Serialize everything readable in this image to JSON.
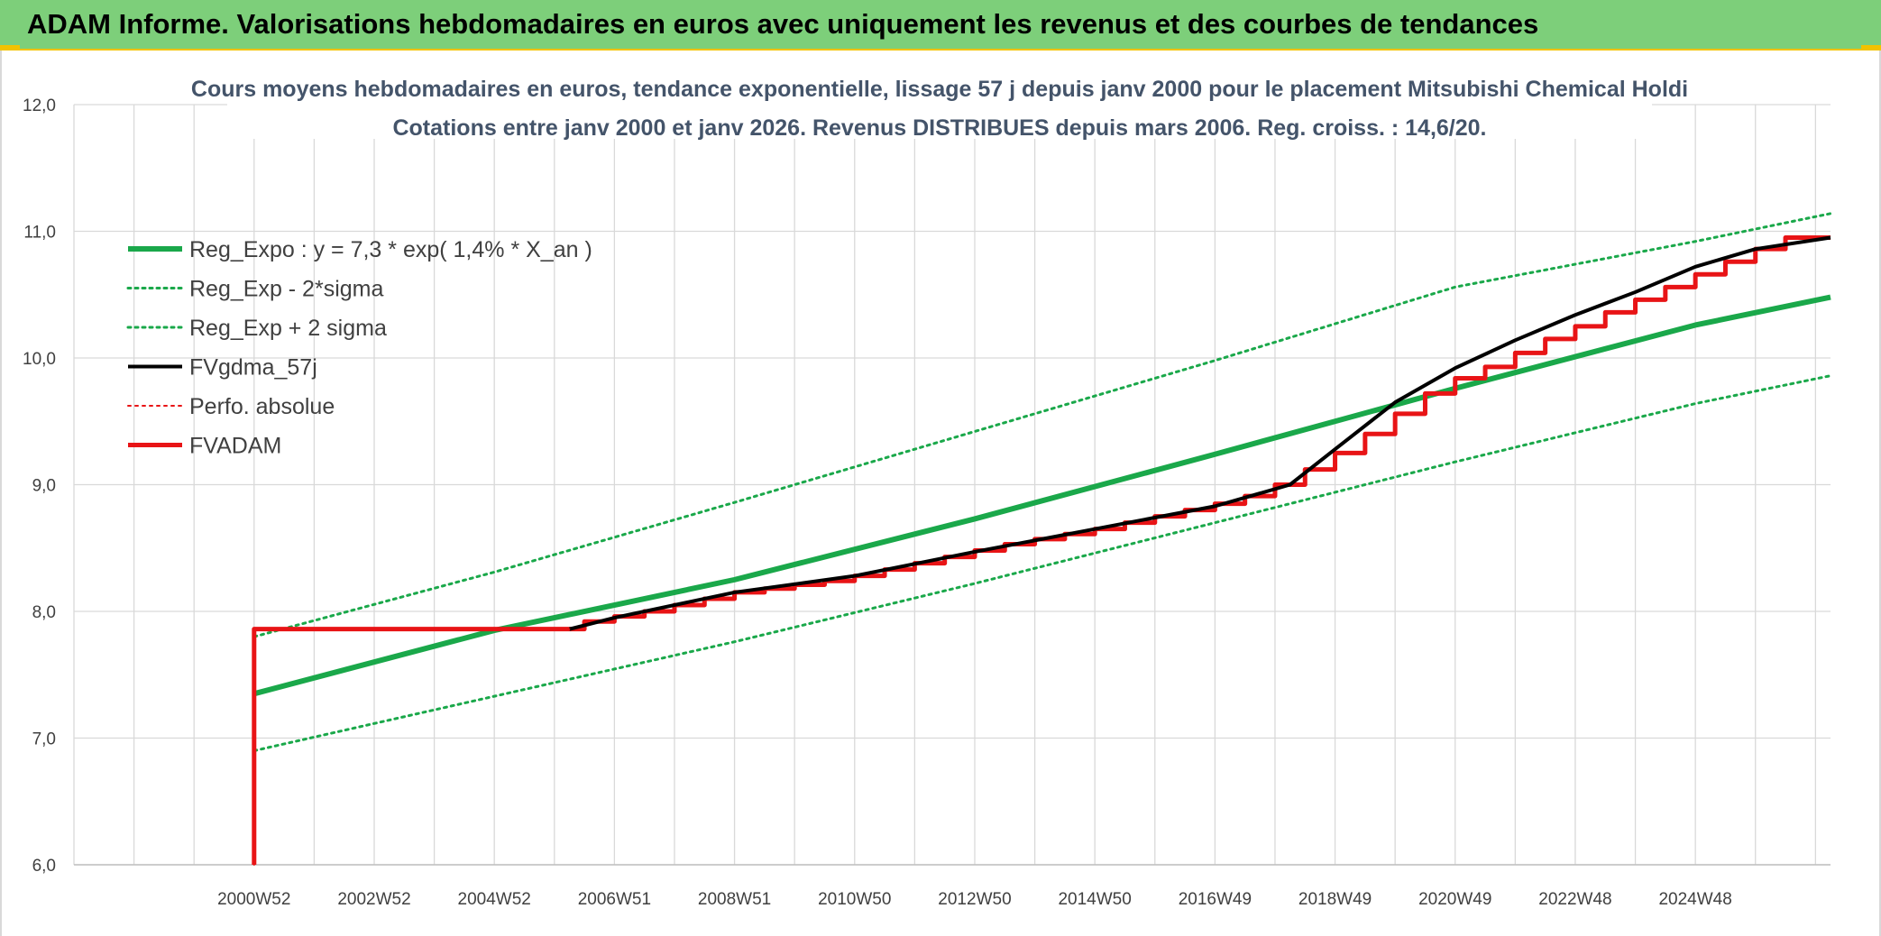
{
  "banner": {
    "title": "ADAM Informe. Valorisations hebdomadaires en euros avec uniquement les revenus et des courbes de tendances"
  },
  "colors": {
    "banner_bg": "#7dcf7a",
    "accent": "#f2c200",
    "green": "#1aa84a",
    "red": "#e81416",
    "black": "#000000",
    "title": "#44546a",
    "grid": "#d9d9d9"
  },
  "chart_data": {
    "type": "line",
    "title": "Cours moyens hebdomadaires en euros, tendance exponentielle, lissage 57 j depuis janv 2000 pour le placement Mitsubishi Chemical Holdi",
    "subtitle": "Cotations entre janv 2000 et janv 2026. Revenus DISTRIBUES depuis mars 2006. Reg. croiss. : 14,6/20.",
    "xlabel": "",
    "ylabel": "",
    "ylim": [
      6.0,
      12.0
    ],
    "xlim": [
      1997.0,
      2026.25
    ],
    "y_ticks": [
      "6,0",
      "7,0",
      "8,0",
      "9,0",
      "10,0",
      "11,0",
      "12,0"
    ],
    "x_ticks": [
      {
        "label": "2000W52",
        "x": 2000.0
      },
      {
        "label": "2002W52",
        "x": 2002.0
      },
      {
        "label": "2004W52",
        "x": 2004.0
      },
      {
        "label": "2006W51",
        "x": 2006.0
      },
      {
        "label": "2008W51",
        "x": 2008.0
      },
      {
        "label": "2010W50",
        "x": 2010.0
      },
      {
        "label": "2012W50",
        "x": 2012.0
      },
      {
        "label": "2014W50",
        "x": 2014.0
      },
      {
        "label": "2016W49",
        "x": 2016.0
      },
      {
        "label": "2018W49",
        "x": 2018.0
      },
      {
        "label": "2020W49",
        "x": 2020.0
      },
      {
        "label": "2022W48",
        "x": 2022.0
      },
      {
        "label": "2024W48",
        "x": 2024.0
      }
    ],
    "legend_position": "top-left",
    "legend": [
      {
        "label": "Reg_Expo : y = 7,3 * exp( 1,4% *  X_an )",
        "color": "#1aa84a",
        "style": "solid",
        "width": 6
      },
      {
        "label": "Reg_Exp - 2*sigma",
        "color": "#1aa84a",
        "style": "dotted",
        "width": 3
      },
      {
        "label": "Reg_Exp + 2 sigma",
        "color": "#1aa84a",
        "style": "dotted",
        "width": 3
      },
      {
        "label": "FVgdma_57j",
        "color": "#000000",
        "style": "solid",
        "width": 4
      },
      {
        "label": "Perfo. absolue",
        "color": "#e81416",
        "style": "dotted",
        "width": 2
      },
      {
        "label": "FVADAM",
        "color": "#e81416",
        "style": "solid",
        "width": 5
      }
    ],
    "series": [
      {
        "name": "Reg_Expo : y = 7,3 * exp( 1,4% *  X_an )",
        "style": "solid",
        "color": "#1aa84a",
        "points": [
          [
            2000.0,
            7.35
          ],
          [
            2004.0,
            7.85
          ],
          [
            2008.0,
            8.25
          ],
          [
            2012.0,
            8.73
          ],
          [
            2016.0,
            9.24
          ],
          [
            2020.0,
            9.76
          ],
          [
            2024.0,
            10.26
          ],
          [
            2026.25,
            10.48
          ]
        ]
      },
      {
        "name": "Reg_Exp - 2*sigma",
        "style": "dotted",
        "color": "#1aa84a",
        "points": [
          [
            2000.0,
            6.9
          ],
          [
            2004.0,
            7.33
          ],
          [
            2008.0,
            7.76
          ],
          [
            2012.0,
            8.22
          ],
          [
            2016.0,
            8.7
          ],
          [
            2020.0,
            9.18
          ],
          [
            2024.0,
            9.64
          ],
          [
            2026.25,
            9.86
          ]
        ]
      },
      {
        "name": "Reg_Exp + 2 sigma",
        "style": "dotted",
        "color": "#1aa84a",
        "points": [
          [
            2000.0,
            7.8
          ],
          [
            2004.0,
            8.31
          ],
          [
            2008.0,
            8.86
          ],
          [
            2012.0,
            9.42
          ],
          [
            2016.0,
            9.98
          ],
          [
            2020.0,
            10.56
          ],
          [
            2024.0,
            10.92
          ],
          [
            2026.25,
            11.14
          ]
        ]
      },
      {
        "name": "FVgdma_57j",
        "style": "solid",
        "color": "#000000",
        "points": [
          [
            2005.25,
            7.86
          ],
          [
            2006.0,
            7.95
          ],
          [
            2008.0,
            8.15
          ],
          [
            2010.0,
            8.28
          ],
          [
            2012.0,
            8.47
          ],
          [
            2014.0,
            8.65
          ],
          [
            2016.0,
            8.83
          ],
          [
            2017.25,
            9.0
          ],
          [
            2018.0,
            9.28
          ],
          [
            2019.0,
            9.65
          ],
          [
            2020.0,
            9.92
          ],
          [
            2021.0,
            10.14
          ],
          [
            2022.0,
            10.34
          ],
          [
            2023.0,
            10.52
          ],
          [
            2024.0,
            10.72
          ],
          [
            2025.0,
            10.86
          ],
          [
            2026.25,
            10.95
          ]
        ]
      },
      {
        "name": "Perfo. absolue",
        "style": "dotted",
        "color": "#e81416",
        "points": [
          [
            2000.0,
            6.0
          ],
          [
            2000.0,
            7.86
          ],
          [
            2005.25,
            7.86
          ]
        ]
      },
      {
        "name": "FVADAM",
        "style": "solid-step",
        "color": "#e81416",
        "points": [
          [
            2000.0,
            6.0
          ],
          [
            2000.0,
            7.86
          ],
          [
            2005.25,
            7.86
          ],
          [
            2005.5,
            7.92
          ],
          [
            2006.0,
            7.96
          ],
          [
            2006.5,
            8.0
          ],
          [
            2007.0,
            8.05
          ],
          [
            2007.5,
            8.1
          ],
          [
            2008.0,
            8.15
          ],
          [
            2008.5,
            8.18
          ],
          [
            2009.0,
            8.21
          ],
          [
            2009.5,
            8.24
          ],
          [
            2010.0,
            8.28
          ],
          [
            2010.5,
            8.33
          ],
          [
            2011.0,
            8.38
          ],
          [
            2011.5,
            8.43
          ],
          [
            2012.0,
            8.48
          ],
          [
            2012.5,
            8.53
          ],
          [
            2013.0,
            8.57
          ],
          [
            2013.5,
            8.61
          ],
          [
            2014.0,
            8.65
          ],
          [
            2014.5,
            8.7
          ],
          [
            2015.0,
            8.75
          ],
          [
            2015.5,
            8.8
          ],
          [
            2016.0,
            8.85
          ],
          [
            2016.5,
            8.91
          ],
          [
            2017.0,
            9.0
          ],
          [
            2017.5,
            9.12
          ],
          [
            2018.0,
            9.25
          ],
          [
            2018.5,
            9.4
          ],
          [
            2019.0,
            9.56
          ],
          [
            2019.5,
            9.72
          ],
          [
            2020.0,
            9.84
          ],
          [
            2020.5,
            9.93
          ],
          [
            2021.0,
            10.04
          ],
          [
            2021.5,
            10.15
          ],
          [
            2022.0,
            10.25
          ],
          [
            2022.5,
            10.36
          ],
          [
            2023.0,
            10.46
          ],
          [
            2023.5,
            10.56
          ],
          [
            2024.0,
            10.66
          ],
          [
            2024.5,
            10.76
          ],
          [
            2025.0,
            10.86
          ],
          [
            2025.5,
            10.95
          ],
          [
            2026.25,
            10.95
          ]
        ]
      }
    ],
    "grid": true
  }
}
